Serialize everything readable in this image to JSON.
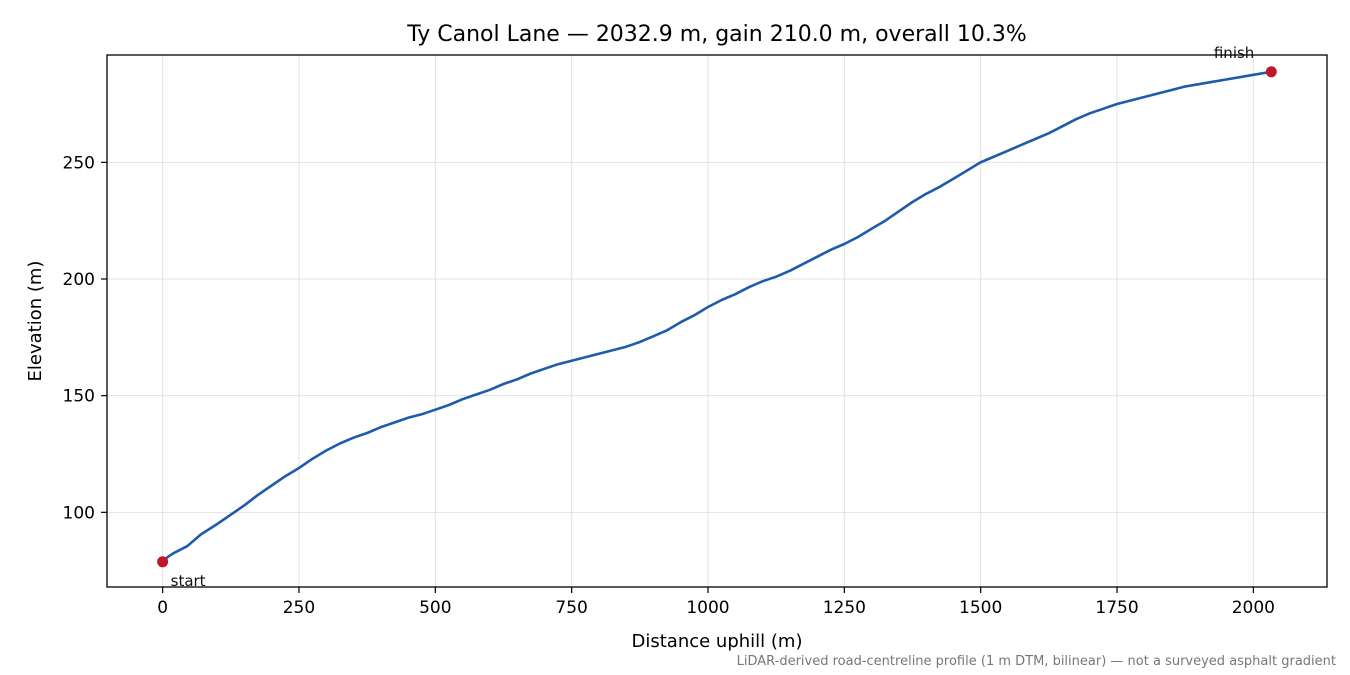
{
  "chart_data": {
    "type": "line",
    "title": "Ty Canol Lane — 2032.9 m, gain 210.0 m, overall 10.3%",
    "xlabel": "Distance uphill (m)",
    "ylabel": "Elevation (m)",
    "xlim": [
      -102,
      2135
    ],
    "ylim": [
      68,
      296
    ],
    "xticks": [
      0,
      250,
      500,
      750,
      1000,
      1250,
      1500,
      1750,
      2000
    ],
    "yticks": [
      100,
      150,
      200,
      250
    ],
    "grid": true,
    "series": [
      {
        "color": "#1f5bab",
        "x": [
          0,
          10,
          20,
          45,
          70,
          100,
          125,
          150,
          175,
          200,
          225,
          250,
          275,
          300,
          325,
          350,
          375,
          400,
          425,
          450,
          475,
          500,
          525,
          550,
          575,
          600,
          625,
          650,
          675,
          700,
          725,
          750,
          775,
          800,
          825,
          850,
          875,
          900,
          925,
          950,
          975,
          1000,
          1025,
          1050,
          1075,
          1100,
          1125,
          1150,
          1175,
          1200,
          1225,
          1250,
          1275,
          1300,
          1325,
          1350,
          1375,
          1400,
          1425,
          1450,
          1475,
          1500,
          1510,
          1525,
          1550,
          1575,
          1600,
          1625,
          1650,
          1675,
          1700,
          1725,
          1750,
          1775,
          1800,
          1825,
          1850,
          1875,
          1900,
          1925,
          1950,
          1975,
          2000,
          2032.9
        ],
        "y": [
          78.8,
          81.0,
          82.5,
          85.5,
          90.5,
          95.0,
          99.0,
          103.0,
          107.5,
          111.5,
          115.5,
          119.0,
          123.0,
          126.5,
          129.5,
          132.0,
          134.0,
          136.5,
          138.5,
          140.5,
          142.0,
          144.0,
          146.0,
          148.5,
          150.5,
          152.5,
          155.0,
          157.0,
          159.5,
          161.5,
          163.5,
          165.0,
          166.5,
          168.0,
          169.5,
          171.0,
          173.0,
          175.5,
          178.0,
          181.5,
          184.5,
          188.0,
          191.0,
          193.5,
          196.5,
          199.0,
          201.0,
          203.5,
          206.5,
          209.5,
          212.5,
          215.0,
          218.0,
          221.5,
          225.0,
          229.0,
          233.0,
          236.5,
          239.5,
          243.0,
          246.5,
          250.0,
          251.0,
          252.5,
          255.0,
          257.5,
          260.0,
          262.5,
          265.5,
          268.5,
          271.0,
          273.0,
          275.0,
          276.5,
          278.0,
          279.5,
          281.0,
          282.5,
          283.5,
          284.5,
          285.5,
          286.5,
          287.5,
          288.8
        ]
      }
    ],
    "points": [
      {
        "label": "start",
        "x": 0,
        "y": 78.8,
        "color": "#c0182a"
      },
      {
        "label": "finish",
        "x": 2032.9,
        "y": 288.8,
        "color": "#c0182a"
      }
    ],
    "footnote": "LiDAR-derived road-centreline profile (1 m DTM, bilinear) — not a surveyed asphalt gradient"
  }
}
